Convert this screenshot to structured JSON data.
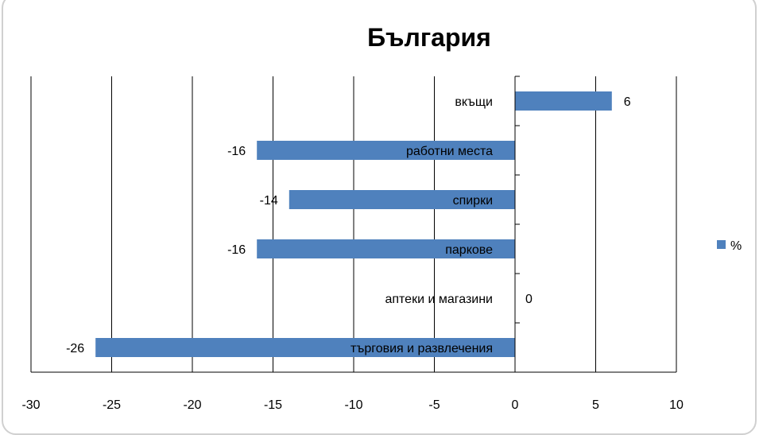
{
  "chart_data": {
    "type": "bar",
    "orientation": "horizontal",
    "title": "България",
    "categories": [
      "вкъщи",
      "работни места",
      "спирки",
      "паркове",
      "аптеки и магазини",
      "търговия и развлечения"
    ],
    "series": [
      {
        "name": "%",
        "values": [
          6,
          -16,
          -14,
          -16,
          0,
          -26
        ],
        "color": "#4f81bd"
      }
    ],
    "xlim": [
      -30,
      10
    ],
    "xticks": [
      -30,
      -25,
      -20,
      -15,
      -10,
      -5,
      0,
      5,
      10
    ],
    "grid": "vertical",
    "legend_position": "right"
  }
}
